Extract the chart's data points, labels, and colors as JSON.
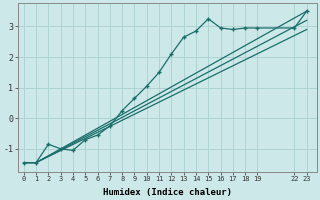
{
  "xlabel": "Humidex (Indice chaleur)",
  "bg_color": "#cde8e8",
  "line_color": "#1a6e6a",
  "grid_color": "#aad0d0",
  "line1_x": [
    0,
    1,
    2,
    3,
    4,
    5,
    6,
    7,
    8,
    9,
    10,
    11,
    12,
    13,
    14,
    15,
    16,
    17,
    18,
    19,
    22,
    23
  ],
  "line1_y": [
    -1.45,
    -1.45,
    -0.85,
    -1.0,
    -1.05,
    -0.7,
    -0.55,
    -0.25,
    0.25,
    0.65,
    1.05,
    1.5,
    2.1,
    2.65,
    2.85,
    3.25,
    2.95,
    2.9,
    2.95,
    2.95,
    2.95,
    3.5
  ],
  "line2_x": [
    0,
    1,
    23
  ],
  "line2_y": [
    -1.45,
    -1.45,
    3.5
  ],
  "line3_x": [
    0,
    1,
    23
  ],
  "line3_y": [
    -1.45,
    -1.45,
    3.2
  ],
  "line4_x": [
    0,
    1,
    23
  ],
  "line4_y": [
    -1.45,
    -1.45,
    2.9
  ],
  "xticks": [
    0,
    1,
    2,
    3,
    4,
    5,
    6,
    7,
    8,
    9,
    10,
    11,
    12,
    13,
    14,
    15,
    16,
    17,
    18,
    19,
    22,
    23
  ],
  "xlabels": [
    "0",
    "1",
    "2",
    "3",
    "4",
    "5",
    "6",
    "7",
    "8",
    "9",
    "10",
    "11",
    "12",
    "13",
    "14",
    "15",
    "16",
    "17",
    "18",
    "19",
    "22",
    "23"
  ],
  "yticks": [
    -1,
    0,
    1,
    2,
    3
  ],
  "xlim": [
    -0.5,
    23.8
  ],
  "ylim": [
    -1.75,
    3.75
  ]
}
